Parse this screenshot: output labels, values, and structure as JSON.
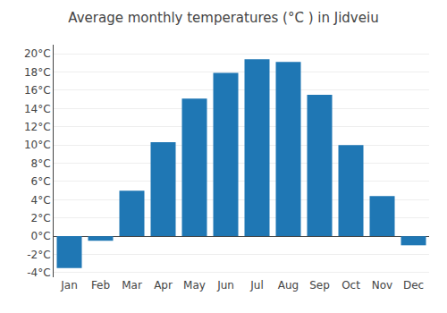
{
  "chart_data": {
    "type": "bar",
    "title": "Average monthly temperatures (°C ) in Jidveiu",
    "categories": [
      "Jan",
      "Feb",
      "Mar",
      "Apr",
      "May",
      "Jun",
      "Jul",
      "Aug",
      "Sep",
      "Oct",
      "Nov",
      "Dec"
    ],
    "values": [
      -3.5,
      -0.5,
      5.0,
      10.3,
      15.1,
      17.9,
      19.4,
      19.1,
      15.5,
      10.0,
      4.4,
      -1.0
    ],
    "ylim": [
      -4.5,
      21
    ],
    "yticks": [
      {
        "value": -4,
        "label": "-4°C"
      },
      {
        "value": -2,
        "label": "-2°C"
      },
      {
        "value": 0,
        "label": "0°C"
      },
      {
        "value": 2,
        "label": "2°C"
      },
      {
        "value": 4,
        "label": "4°C"
      },
      {
        "value": 6,
        "label": "6°C"
      },
      {
        "value": 8,
        "label": "8°C"
      },
      {
        "value": 10,
        "label": "10°C"
      },
      {
        "value": 12,
        "label": "12°C"
      },
      {
        "value": 14,
        "label": "14°C"
      },
      {
        "value": 16,
        "label": "16°C"
      },
      {
        "value": 18,
        "label": "18°C"
      },
      {
        "value": 20,
        "label": "20°C"
      }
    ],
    "grid": true
  }
}
